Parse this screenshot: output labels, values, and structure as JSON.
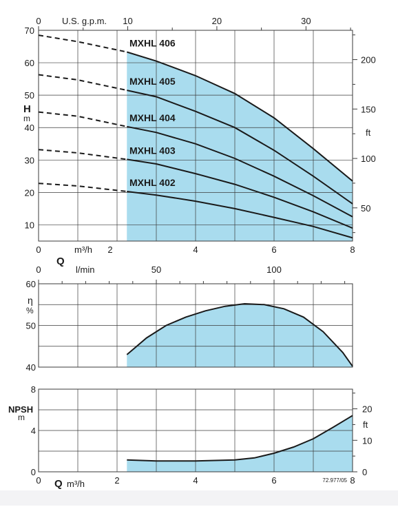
{
  "chart_data": [
    {
      "type": "line",
      "x_unit_bottom": "m³/h",
      "x_label_bottom": "Q",
      "x_unit_top": "U.S. g.p.m.",
      "y_label_left": "H",
      "y_unit_left": "m",
      "y_unit_right": "ft",
      "xlim": [
        0,
        8
      ],
      "ylim": [
        5,
        70
      ],
      "x_ticks_bottom": [
        "0",
        "2",
        "4",
        "6",
        "8"
      ],
      "x_ticks_top": [
        "0",
        "10",
        "20",
        "30"
      ],
      "y_ticks_left": [
        "10",
        "20",
        "30",
        "40",
        "50",
        "60",
        "70"
      ],
      "y_ticks_right": [
        "50",
        "100",
        "150",
        "200"
      ],
      "operating_range_x": [
        2.25,
        8
      ],
      "grid": true,
      "series": [
        {
          "name": "MXHL 402",
          "x": [
            0,
            1,
            2.25,
            3,
            4,
            5,
            6,
            7,
            8
          ],
          "values": [
            22.8,
            22.0,
            20.3,
            19.2,
            17.3,
            15.0,
            12.3,
            9.5,
            6.0
          ]
        },
        {
          "name": "MXHL 403",
          "x": [
            0,
            1,
            2.25,
            3,
            4,
            5,
            6,
            7,
            8
          ],
          "values": [
            33.2,
            32.2,
            30.2,
            28.8,
            25.8,
            22.5,
            18.5,
            14.0,
            9.0
          ]
        },
        {
          "name": "MXHL 404",
          "x": [
            0,
            1,
            2.25,
            3,
            4,
            5,
            6,
            7,
            8
          ],
          "values": [
            44.8,
            43.5,
            40.3,
            38.5,
            35.0,
            30.5,
            25.0,
            19.0,
            12.5
          ]
        },
        {
          "name": "MXHL 405",
          "x": [
            0,
            1,
            2.25,
            3,
            4,
            5,
            6,
            7,
            8
          ],
          "values": [
            56.3,
            54.7,
            51.5,
            49.5,
            45.0,
            40.0,
            33.0,
            25.0,
            16.5
          ]
        },
        {
          "name": "MXHL 406",
          "x": [
            0,
            1,
            2.25,
            3,
            4,
            5,
            6,
            7,
            8
          ],
          "values": [
            68.5,
            66.5,
            63.3,
            60.5,
            56.0,
            50.5,
            43.0,
            33.5,
            23.5
          ]
        }
      ]
    },
    {
      "type": "area",
      "x_unit_top": "l/min",
      "x_ticks_top": [
        "0",
        "50",
        "100"
      ],
      "y_label_left": "η",
      "y_unit_left": "%",
      "xlim": [
        0,
        8
      ],
      "ylim": [
        40,
        60
      ],
      "y_ticks_left": [
        "40",
        "50",
        "60"
      ],
      "grid": true,
      "series": [
        {
          "x": [
            2.25,
            2.75,
            3.25,
            3.75,
            4.25,
            4.75,
            5.25,
            5.75,
            6.25,
            6.75,
            7.25,
            7.75,
            8
          ],
          "values": [
            43.0,
            47.0,
            50.0,
            52.0,
            53.5,
            54.6,
            55.2,
            55.0,
            54.0,
            52.0,
            48.5,
            43.5,
            40.2
          ]
        }
      ]
    },
    {
      "type": "area",
      "x_unit_bottom": "m³/h",
      "x_label_bottom": "Q",
      "x_ticks_bottom": [
        "0",
        "2",
        "4",
        "6",
        "8"
      ],
      "y_label_left": "NPSH",
      "y_unit_left": "m",
      "y_unit_right": "ft",
      "xlim": [
        0,
        8
      ],
      "ylim": [
        0,
        8
      ],
      "y_ticks_left": [
        "0",
        "4",
        "8"
      ],
      "y_ticks_right": [
        "0",
        "10",
        "20"
      ],
      "grid": true,
      "footnote": "72.977/05",
      "series": [
        {
          "x": [
            2.25,
            3,
            4,
            5,
            5.5,
            6,
            6.5,
            7,
            7.5,
            8
          ],
          "values": [
            1.15,
            1.05,
            1.05,
            1.15,
            1.35,
            1.8,
            2.4,
            3.2,
            4.3,
            5.45
          ]
        }
      ]
    }
  ],
  "colors": {
    "fill": "#a9dcee",
    "line": "#1a1a1a",
    "grid": "#3a3a3a",
    "background": "#ffffff"
  }
}
